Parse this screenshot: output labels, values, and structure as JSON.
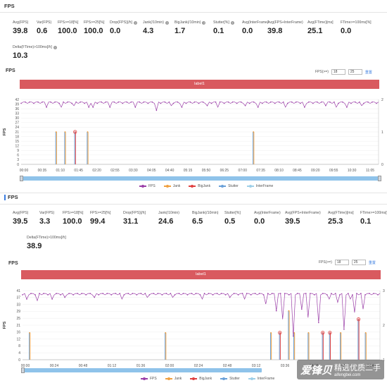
{
  "colors": {
    "fps": "#9b3fa8",
    "jank": "#f0a040",
    "bigjank": "#e04040",
    "stutter": "#6aa0d8",
    "interframe": "#9ecfe8",
    "accent": "#3b7de0",
    "banner": "#d95a5f"
  },
  "panels": [
    {
      "section_title": "FPS",
      "stats": [
        {
          "label": "Avg(FPS)",
          "value": "39.8",
          "help": false
        },
        {
          "label": "Var(FPS)",
          "value": "0.6",
          "help": false
        },
        {
          "label": "FPS>=18[%]",
          "value": "100.0",
          "help": false
        },
        {
          "label": "FPS>=25[%]",
          "value": "100.0",
          "help": false
        },
        {
          "label": "Drop(FPS)[/h]",
          "value": "0.0",
          "help": true
        },
        {
          "label": "Jank(/10min)",
          "value": "4.3",
          "help": true
        },
        {
          "label": "BigJank(/10min)",
          "value": "1.7",
          "help": true
        },
        {
          "label": "Stutter[%]",
          "value": "0.1",
          "help": true
        },
        {
          "label": "Avg(InterFrame)",
          "value": "0.0",
          "help": false
        },
        {
          "label": "Avg(FPS+InterFrame)",
          "value": "39.8",
          "help": false
        },
        {
          "label": "Avg(FTime)[ms]",
          "value": "25.1",
          "help": false
        },
        {
          "label": "FTime>=100ms[%]",
          "value": "0.0",
          "help": false
        }
      ],
      "delta": {
        "label": "Delta(FTime)>100ms[/h]",
        "value": "10.3"
      },
      "chart_title": "FPS",
      "controls": {
        "label": "FPS(>=)",
        "v1": "18",
        "v2": "25",
        "reset": "重置"
      },
      "banner": "label1",
      "chart_data": {
        "type": "line",
        "y_ticks": [
          "42",
          "39",
          "36",
          "33",
          "30",
          "27",
          "24",
          "21",
          "18",
          "15",
          "12",
          "9",
          "6",
          "3",
          "0"
        ],
        "ylabel": "FPS",
        "right_ticks": [
          "2",
          "1",
          "0"
        ],
        "x_ticks": [
          "00:00",
          "00:35",
          "01:10",
          "01:45",
          "02:20",
          "02:55",
          "03:30",
          "04:05",
          "04:40",
          "05:15",
          "05:50",
          "06:25",
          "07:00",
          "07:35",
          "08:10",
          "08:45",
          "09:20",
          "09:55",
          "10:30",
          "11:05"
        ],
        "ylim": [
          0,
          42
        ],
        "fps_baseline": 40,
        "fps_drops": [
          [
            0.07,
            37
          ],
          [
            0.11,
            37
          ],
          [
            0.15,
            38
          ],
          [
            0.19,
            37
          ],
          [
            0.2,
            37
          ],
          [
            0.25,
            37
          ],
          [
            0.32,
            37
          ],
          [
            0.38,
            35
          ],
          [
            0.42,
            38
          ],
          [
            0.45,
            37
          ],
          [
            0.52,
            38
          ],
          [
            0.55,
            37
          ],
          [
            0.63,
            38
          ],
          [
            0.66,
            37
          ],
          [
            0.74,
            37
          ],
          [
            0.79,
            37
          ],
          [
            0.85,
            38
          ],
          [
            0.88,
            37
          ],
          [
            0.91,
            37
          ],
          [
            0.95,
            38
          ]
        ],
        "spikes": [
          {
            "pos": 0.098,
            "peak": 21,
            "color": "jank",
            "marker": false
          },
          {
            "pos": 0.123,
            "peak": 21,
            "color": "jank",
            "marker": false
          },
          {
            "pos": 0.151,
            "peak": 21,
            "color": "bigjank",
            "marker": true
          },
          {
            "pos": 0.186,
            "peak": 21,
            "color": "jank",
            "marker": false
          },
          {
            "pos": 0.65,
            "peak": 21,
            "color": "jank",
            "marker": false
          }
        ],
        "series": [
          "FPS",
          "Jank",
          "BigJank",
          "Stutter",
          "InterFrame"
        ]
      }
    },
    {
      "section_title": "FPS",
      "stats": [
        {
          "label": "Avg(FPS)",
          "value": "39.5",
          "help": false
        },
        {
          "label": "Var(FPS)",
          "value": "3.3",
          "help": false
        },
        {
          "label": "FPS>=18[%]",
          "value": "100.0",
          "help": false
        },
        {
          "label": "FPS>=25[%]",
          "value": "99.4",
          "help": false
        },
        {
          "label": "Drop(FPS)[/h]",
          "value": "31.1",
          "help": true
        },
        {
          "label": "Jank(/10min)",
          "value": "24.6",
          "help": true
        },
        {
          "label": "BigJank(/10min)",
          "value": "6.5",
          "help": true
        },
        {
          "label": "Stutter[%]",
          "value": "0.5",
          "help": true
        },
        {
          "label": "Avg(InterFrame)",
          "value": "0.0",
          "help": false
        },
        {
          "label": "Avg(FPS+InterFrame)",
          "value": "39.5",
          "help": false
        },
        {
          "label": "Avg(FTime)[ms]",
          "value": "25.3",
          "help": false
        },
        {
          "label": "FTime>=100ms[%]",
          "value": "0.1",
          "help": false
        }
      ],
      "delta": {
        "label": "Delta(FTime)>100ms[/h]",
        "value": "38.9"
      },
      "chart_title": "FPS",
      "controls": {
        "label": "FPS(>=)",
        "v1": "18",
        "v2": "25",
        "reset": "重置"
      },
      "banner": "label1",
      "chart_data": {
        "type": "line",
        "y_ticks": [
          "41",
          "37",
          "33",
          "29",
          "25",
          "21",
          "16",
          "12",
          "8",
          "4",
          "0"
        ],
        "ylabel": "FPS",
        "right_ticks": [
          "3",
          "2",
          "1"
        ],
        "x_ticks": [
          "00:00",
          "00:24",
          "00:48",
          "01:12",
          "01:36",
          "02:00",
          "02:24",
          "02:48",
          "03:12",
          "03:36",
          "04:00",
          "04:24",
          "04:48"
        ],
        "ylim": [
          0,
          41
        ],
        "fps_baseline": 39,
        "fps_drops": [
          [
            0.01,
            36
          ],
          [
            0.04,
            35
          ],
          [
            0.08,
            36
          ],
          [
            0.12,
            37
          ],
          [
            0.2,
            37
          ],
          [
            0.28,
            36
          ],
          [
            0.35,
            37
          ],
          [
            0.42,
            37
          ],
          [
            0.5,
            36
          ],
          [
            0.58,
            37
          ],
          [
            0.62,
            36
          ],
          [
            0.68,
            33
          ],
          [
            0.71,
            29
          ],
          [
            0.73,
            24
          ],
          [
            0.76,
            14
          ],
          [
            0.78,
            30
          ],
          [
            0.8,
            25
          ],
          [
            0.83,
            22
          ],
          [
            0.86,
            36
          ],
          [
            0.88,
            34
          ],
          [
            0.9,
            18
          ],
          [
            0.92,
            36
          ],
          [
            0.93,
            28
          ],
          [
            0.95,
            30
          ]
        ],
        "spikes": [
          {
            "pos": 0.02,
            "peak": 16,
            "color": "jank",
            "marker": false
          },
          {
            "pos": 0.4,
            "peak": 16,
            "color": "jank",
            "marker": false
          },
          {
            "pos": 0.695,
            "peak": 16,
            "color": "jank",
            "marker": false
          },
          {
            "pos": 0.72,
            "peak": 16,
            "color": "bigjank",
            "marker": true
          },
          {
            "pos": 0.745,
            "peak": 29,
            "color": "jank",
            "marker": false
          },
          {
            "pos": 0.76,
            "peak": 16,
            "color": "jank",
            "marker": false
          },
          {
            "pos": 0.8,
            "peak": 16,
            "color": "jank",
            "marker": false
          },
          {
            "pos": 0.84,
            "peak": 16,
            "color": "bigjank",
            "marker": true
          },
          {
            "pos": 0.86,
            "peak": 16,
            "color": "bigjank",
            "marker": true
          },
          {
            "pos": 0.89,
            "peak": 16,
            "color": "jank",
            "marker": false
          },
          {
            "pos": 0.94,
            "peak": 24,
            "color": "bigjank",
            "marker": true
          },
          {
            "pos": 0.96,
            "peak": 16,
            "color": "jank",
            "marker": false
          }
        ],
        "series": [
          "FPS",
          "Jank",
          "BigJank",
          "Stutter",
          "InterFrame"
        ]
      }
    }
  ],
  "watermark": {
    "logo": "爱锋贝",
    "tagline": "精选优质二手",
    "url": "aifengbei.com"
  }
}
